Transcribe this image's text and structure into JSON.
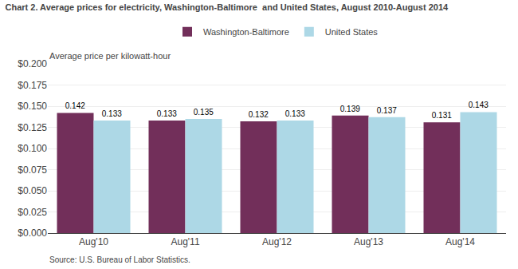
{
  "chart_data": {
    "type": "bar",
    "title": "Chart 2. Average prices for electricity, Washington-Baltimore  and United States, August 2010-August 2014",
    "ylabel": "Average price per kilowatt-hour",
    "annotations": [
      "Source: U.S. Bureau of Labor Statistics."
    ],
    "categories": [
      "Aug'10",
      "Aug'11",
      "Aug'12",
      "Aug'13",
      "Aug'14"
    ],
    "series": [
      {
        "name": "Washington-Baltimore",
        "color": "#722F5A",
        "values": [
          0.142,
          0.133,
          0.132,
          0.139,
          0.131
        ]
      },
      {
        "name": "United States",
        "color": "#ADD8E6",
        "values": [
          0.133,
          0.135,
          0.133,
          0.137,
          0.143
        ]
      }
    ],
    "ylim": [
      0,
      0.2
    ],
    "yticks": [
      {
        "value": 0.0,
        "label": "$0.000"
      },
      {
        "value": 0.025,
        "label": "$0.025"
      },
      {
        "value": 0.05,
        "label": "$0.050"
      },
      {
        "value": 0.075,
        "label": "$0.075"
      },
      {
        "value": 0.1,
        "label": "$0.100"
      },
      {
        "value": 0.125,
        "label": "$0.125"
      },
      {
        "value": 0.15,
        "label": "$0.150"
      },
      {
        "value": 0.175,
        "label": "$0.175"
      },
      {
        "value": 0.2,
        "label": "$0.200"
      }
    ],
    "grid": true,
    "legend": "top",
    "data_labels": true
  }
}
